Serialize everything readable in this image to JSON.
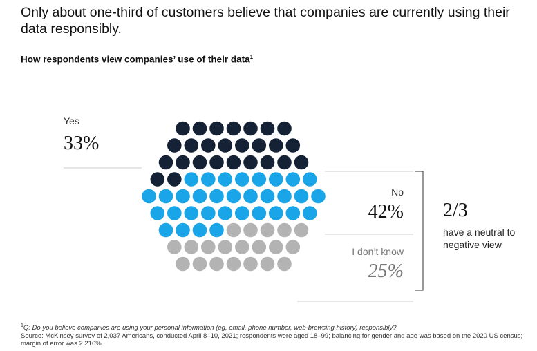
{
  "header": {
    "title": "Only about one-third of customers believe that companies are currently using their data responsibly.",
    "subtitle": "How respondents view companies’ use of their data",
    "subtitle_note": "1"
  },
  "labels": {
    "yes": "Yes",
    "yes_value": "33%",
    "no": "No",
    "no_value": "42%",
    "dont_know": "I don’t know",
    "dont_know_value": "25%",
    "fraction": "2/3",
    "fraction_text": "have a neutral to negative view"
  },
  "chart_data": {
    "type": "pie",
    "categories": [
      "Yes",
      "No",
      "I don’t know"
    ],
    "values": [
      33,
      42,
      25
    ],
    "colors": [
      "#152236",
      "#1aa5e8",
      "#b3b3b3"
    ]
  },
  "footer": {
    "note_marker": "1",
    "question": "Q: Do you believe companies are using your personal information (eg, email, phone number, web-browsing history) responsibly?",
    "source": "Source: McKinsey survey of 2,037 Americans, conducted April 8–10, 2021; respondents were aged 18–99; balancing for gender and age was based on the 2020 US census; margin of error was 2.216%"
  }
}
